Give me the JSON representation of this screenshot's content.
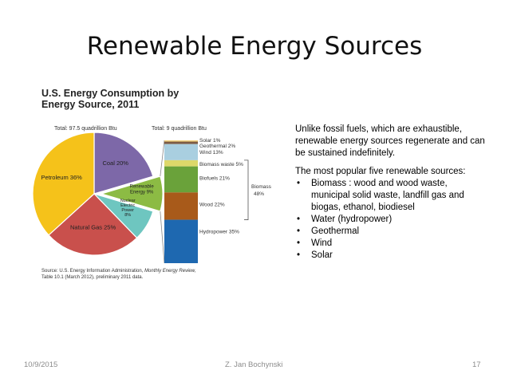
{
  "slide": {
    "title": "Renewable Energy Sources",
    "footer_date": "10/9/2015",
    "footer_author": "Z. Jan Bochynski",
    "footer_page": "17"
  },
  "figure": {
    "title_line1": "U.S. Energy Consumption by",
    "title_line2": "Energy Source, 2011",
    "source_line1_prefix": "Source: U.S. Energy Information Administration, ",
    "source_line1_italic": "Monthly Energy Review,",
    "source_line2": "Table 10.1 (March 2012), preliminary 2011 data."
  },
  "text": {
    "para1": "Unlike fossil fuels, which are exhaustible, renewable energy sources regenerate and can be sustained indefinitely.",
    "para2": "The most popular five renewable sources:",
    "bullets": [
      "Biomass : wood and wood waste, municipal solid waste, landfill gas and biogas, ethanol, biodiesel",
      "Water (hydropower)",
      "Geothermal",
      "Wind",
      "Solar"
    ]
  },
  "chart_data": [
    {
      "type": "pie",
      "total_label": "Total:  97.5 quadrillion Btu",
      "slices": [
        {
          "label": "Coal",
          "value": 20,
          "color": "#7d68a8"
        },
        {
          "label": "Renewable Energy",
          "value": 9,
          "color": "#8cbb44"
        },
        {
          "label": "Nuclear Electric Power",
          "value": 8,
          "color": "#6ec6c0"
        },
        {
          "label": "Natural Gas",
          "value": 25,
          "color": "#c9504c"
        },
        {
          "label": "Petroleum",
          "value": 36,
          "color": "#f5c21a"
        }
      ]
    },
    {
      "type": "bar",
      "stacked": true,
      "total_label": "Total:  9 quadrillion Btu",
      "segments": [
        {
          "label": "Solar",
          "value": 1,
          "color": "#f4d27a"
        },
        {
          "label": "Geothermal",
          "value": 2,
          "color": "#7c5c46"
        },
        {
          "label": "Wind",
          "value": 13,
          "color": "#a9cfe0"
        },
        {
          "label": "Biomass waste",
          "value": 5,
          "color": "#ddd86a"
        },
        {
          "label": "Biofuels",
          "value": 21,
          "color": "#6aa23a"
        },
        {
          "label": "Wood",
          "value": 22,
          "color": "#a85a1a"
        },
        {
          "label": "Hydropower",
          "value": 35,
          "color": "#1e68b0"
        }
      ],
      "bracket_label": "Biomass 48%"
    }
  ]
}
